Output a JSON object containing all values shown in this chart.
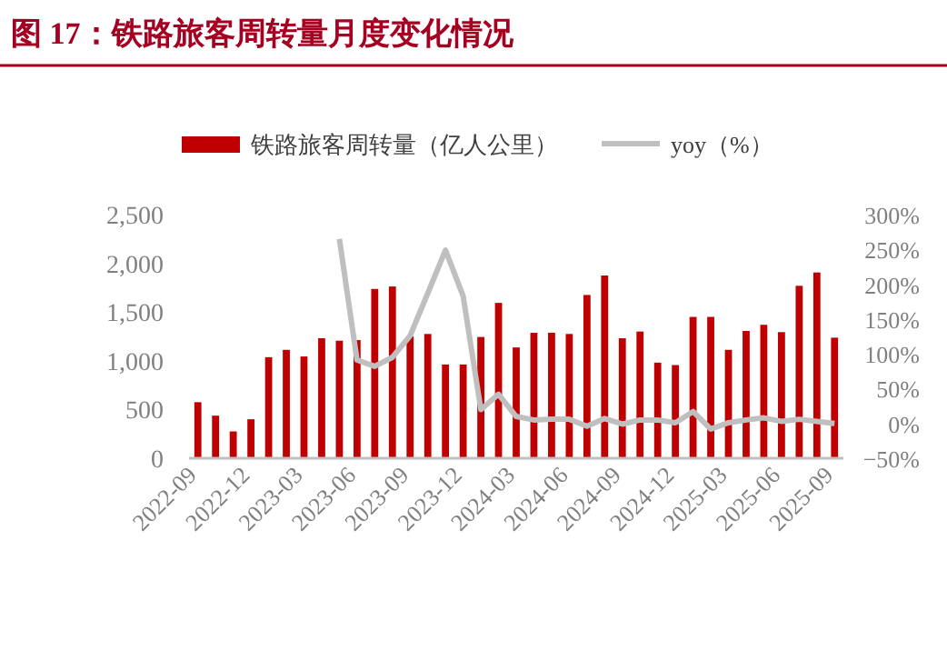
{
  "chart_data": {
    "type": "bar",
    "title": "图 17：铁路旅客周转量月度变化情况",
    "categories": [
      "2022-09",
      null,
      null,
      "2022-12",
      null,
      null,
      "2023-03",
      null,
      null,
      "2023-06",
      null,
      null,
      "2023-09",
      null,
      null,
      "2023-12",
      null,
      null,
      "2024-03",
      null,
      null,
      "2024-06",
      null,
      null,
      "2024-09",
      null,
      null,
      "2024-12",
      null,
      null,
      "2025-03",
      null,
      null,
      "2025-06",
      null,
      null,
      "2025-09"
    ],
    "series": [
      {
        "name": "铁路旅客周转量（亿人公里）",
        "color": "#c00000",
        "values": [
          575,
          437,
          275,
          400,
          1037,
          1112,
          1044,
          1231,
          1206,
          1212,
          1737,
          1762,
          1250,
          1275,
          962,
          962,
          1244,
          1594,
          1137,
          1287,
          1287,
          1275,
          1675,
          1875,
          1231,
          1300,
          981,
          956,
          1450,
          1450,
          1112,
          1306,
          1369,
          1294,
          1769,
          1906,
          1237
        ]
      },
      {
        "name": "yoy（%）",
        "type": "line",
        "axis": "y2",
        "color": "#bfbfbf",
        "values": [
          null,
          null,
          null,
          null,
          null,
          null,
          null,
          null,
          265,
          91,
          82,
          95,
          126,
          187,
          249,
          183,
          20,
          42,
          10,
          5,
          6,
          6,
          -4,
          7,
          -1,
          5,
          5,
          1,
          17,
          -8,
          1,
          5,
          8,
          3,
          6,
          3,
          0
        ]
      }
    ],
    "ylim": [
      0,
      2500
    ],
    "yticks": [
      0,
      {
        "value": 500,
        "label": "500"
      },
      {
        "value": 1000,
        "label": "1,000"
      },
      {
        "value": 1500,
        "label": "1,500"
      },
      {
        "value": 2000,
        "label": "2,000"
      },
      {
        "value": 2500,
        "label": "2,500"
      }
    ],
    "y2lim": [
      -50,
      300
    ],
    "y2ticks": [
      {
        "value": -50,
        "label": "−50%"
      },
      {
        "value": 0,
        "label": "0%"
      },
      {
        "value": 50,
        "label": "50%"
      },
      {
        "value": 100,
        "label": "100%"
      },
      {
        "value": 150,
        "label": "150%"
      },
      {
        "value": 200,
        "label": "200%"
      },
      {
        "value": 250,
        "label": "250%"
      },
      {
        "value": 300,
        "label": "300%"
      }
    ],
    "legend": "top",
    "grid": false
  }
}
